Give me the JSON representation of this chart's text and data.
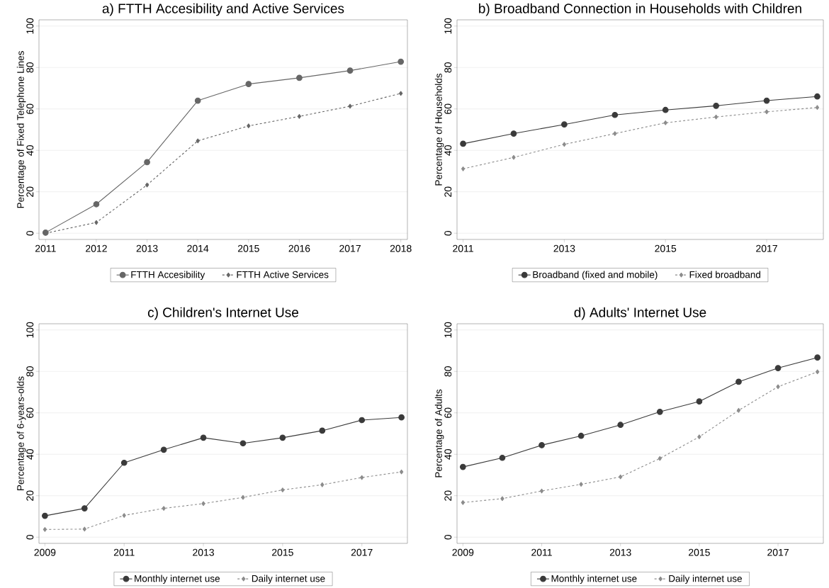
{
  "chart_data": [
    {
      "type": "line",
      "title": "a) FTTH Accesibility and Active Services",
      "ylabel": "Percentage of Fixed Telephone Lines",
      "x": [
        2011,
        2012,
        2013,
        2014,
        2015,
        2016,
        2017,
        2018
      ],
      "xlim": [
        2010.87,
        2018.13
      ],
      "xticks": [
        2011,
        2012,
        2013,
        2014,
        2015,
        2016,
        2017,
        2018
      ],
      "ylim": [
        -3,
        103
      ],
      "yticks": [
        0,
        20,
        40,
        60,
        80,
        100
      ],
      "grid": "y",
      "legend": "bottom",
      "series": [
        {
          "name": "FTTH Accesibility",
          "color": "#666666",
          "marker": "circle",
          "line_style": "solid",
          "values": [
            0.3,
            14,
            34.3,
            64,
            72,
            75,
            78.5,
            82.8
          ]
        },
        {
          "name": "FTTH Active Services",
          "color": "#666666",
          "marker": "diamond",
          "line_style": "dashed",
          "values": [
            0,
            5.2,
            23.3,
            44.6,
            51.8,
            56.4,
            61.3,
            67.5
          ]
        }
      ]
    },
    {
      "type": "line",
      "title": "b) Broadband Connection in Households with Children",
      "ylabel": "Percentage of Households",
      "x": [
        2011,
        2012,
        2013,
        2014,
        2015,
        2016,
        2017,
        2018
      ],
      "xlim": [
        2010.88,
        2018.12
      ],
      "xticks": [
        2011,
        2013,
        2015,
        2017
      ],
      "ylim": [
        -3,
        103
      ],
      "yticks": [
        0,
        20,
        40,
        60,
        80,
        100
      ],
      "grid": "y",
      "legend": "bottom",
      "series": [
        {
          "name": "Broadband (fixed and mobile)",
          "color": "#3a3a3a",
          "marker": "circle",
          "line_style": "solid",
          "values": [
            43.2,
            48.1,
            52.5,
            57.1,
            59.5,
            61.5,
            64,
            66
          ]
        },
        {
          "name": "Fixed broadband",
          "color": "#8c8c8c",
          "marker": "diamond",
          "line_style": "dashed",
          "values": [
            31.1,
            36.6,
            42.9,
            48.1,
            53.3,
            56.1,
            58.6,
            60.7
          ]
        }
      ]
    },
    {
      "type": "line",
      "title": "c) Children's Internet Use",
      "ylabel": "Percentage of 6-years-olds",
      "x": [
        2009,
        2010,
        2011,
        2012,
        2013,
        2014,
        2015,
        2016,
        2017,
        2018
      ],
      "xlim": [
        2008.85,
        2018.15
      ],
      "xticks": [
        2009,
        2011,
        2013,
        2015,
        2017
      ],
      "ylim": [
        -3,
        103
      ],
      "yticks": [
        0,
        20,
        40,
        60,
        80,
        100
      ],
      "grid": "y",
      "legend": "bottom",
      "series": [
        {
          "name": "Monthly internet use",
          "color": "#3a3a3a",
          "marker": "circle",
          "line_style": "solid",
          "values": [
            10.3,
            13.9,
            35.9,
            42.2,
            48,
            45.3,
            48,
            51.4,
            56.5,
            57.8
          ]
        },
        {
          "name": "Daily internet use",
          "color": "#8c8c8c",
          "marker": "diamond",
          "line_style": "dashed",
          "values": [
            3.7,
            3.9,
            10.5,
            13.9,
            16.2,
            19.2,
            22.8,
            25.3,
            28.8,
            31.5
          ]
        }
      ]
    },
    {
      "type": "line",
      "title": "d) Adults' Internet Use",
      "ylabel": "Percentage of Adults",
      "x": [
        2009,
        2010,
        2011,
        2012,
        2013,
        2014,
        2015,
        2016,
        2017,
        2018
      ],
      "xlim": [
        2008.85,
        2018.15
      ],
      "xticks": [
        2009,
        2011,
        2013,
        2015,
        2017
      ],
      "ylim": [
        -3,
        103
      ],
      "yticks": [
        0,
        20,
        40,
        60,
        80,
        100
      ],
      "grid": "y",
      "legend": "bottom",
      "series": [
        {
          "name": "Monthly internet use",
          "color": "#3a3a3a",
          "marker": "circle",
          "line_style": "solid",
          "values": [
            33.9,
            38.3,
            44.4,
            48.9,
            54.2,
            60.5,
            65.5,
            75,
            81.6,
            86.7
          ]
        },
        {
          "name": "Daily internet use",
          "color": "#8c8c8c",
          "marker": "diamond",
          "line_style": "dashed",
          "values": [
            16.7,
            18.6,
            22.3,
            25.5,
            29.1,
            38,
            48.4,
            61.2,
            72.6,
            79.8
          ]
        }
      ]
    }
  ]
}
